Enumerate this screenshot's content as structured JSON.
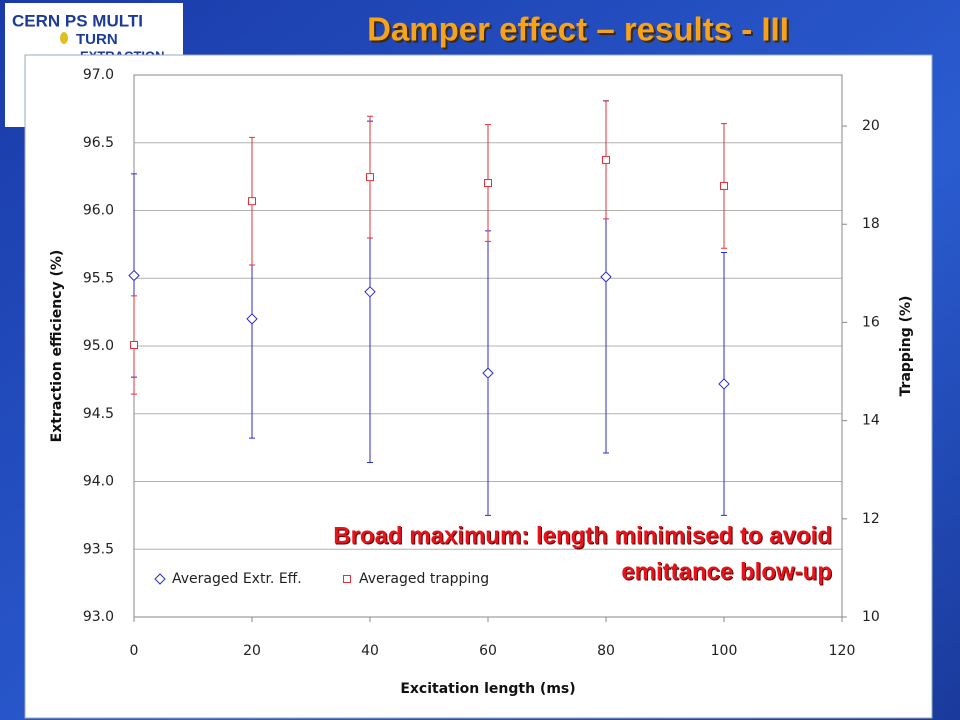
{
  "logo": {
    "lines": [
      "CERN PS MULTI",
      "TURN",
      "EXTRACTION"
    ]
  },
  "chart_data": {
    "type": "scatter",
    "title": "Damper effect – results - III",
    "xlabel": "Excitation length (ms)",
    "ylabel": "Extraction efficiency (%)",
    "y2label": "Trapping (%)",
    "annotation": [
      "Broad maximum: length minimised to avoid",
      "emittance blow-up"
    ],
    "x": [
      0,
      20,
      40,
      60,
      80,
      100
    ],
    "series": [
      {
        "name": "Averaged Extr. Eff.",
        "color": "#2b2bc8",
        "marker": "diamond",
        "axis": "y",
        "values": [
          95.52,
          95.2,
          95.4,
          94.8,
          95.51,
          94.72
        ],
        "errors": [
          0.75,
          0.88,
          1.26,
          1.05,
          1.3,
          0.97
        ]
      },
      {
        "name": "Averaged trapping",
        "color": "#e0303a",
        "marker": "square",
        "axis": "y2",
        "values": [
          15.54,
          18.47,
          18.96,
          18.84,
          19.31,
          18.78
        ],
        "errors": [
          1.0,
          1.3,
          1.24,
          1.19,
          1.2,
          1.27
        ]
      }
    ],
    "xlim": [
      0,
      120
    ],
    "xticks": [
      0,
      20,
      40,
      60,
      80,
      100,
      120
    ],
    "ylim": [
      93,
      97
    ],
    "yticks": [
      {
        "value": 93,
        "label": "93.0"
      },
      93.5,
      {
        "value": 94,
        "label": "94.0"
      },
      94.5,
      {
        "value": 95,
        "label": "95.0"
      },
      95.5,
      {
        "value": 96,
        "label": "96.0"
      },
      96.5,
      {
        "value": 97,
        "label": "97.0"
      }
    ],
    "y2lim": [
      10,
      21.04
    ],
    "y2ticks": [
      10,
      12,
      14,
      16,
      18,
      20
    ],
    "grid": true,
    "legend": "lower left"
  }
}
